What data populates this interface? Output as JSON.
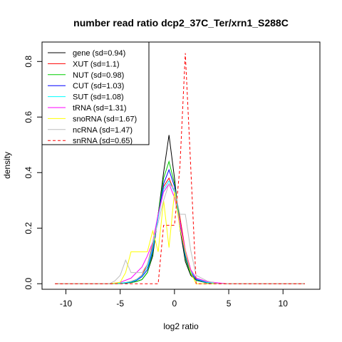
{
  "chart_data": {
    "type": "line",
    "title": "number read ratio dcp2_37C_Ter/xrn1_S288C",
    "xlabel": "log2 ratio",
    "ylabel": "density",
    "xlim": [
      -12.2,
      13.4
    ],
    "ylim": [
      -0.02,
      0.87
    ],
    "x_ticks": [
      -10,
      -5,
      0,
      5,
      10
    ],
    "x_tick_labels": [
      "-10",
      "-5",
      "0",
      "5",
      "10"
    ],
    "y_ticks": [
      0.0,
      0.2,
      0.4,
      0.6,
      0.8
    ],
    "y_tick_labels": [
      "0.0",
      "0.2",
      "0.4",
      "0.6",
      "0.8"
    ],
    "legend_position": "top-left",
    "series": [
      {
        "name": "gene (sd=0.94)",
        "color": "#000000",
        "dash": "solid",
        "x": [
          -11,
          -6,
          -5,
          -4.5,
          -4,
          -3.5,
          -3,
          -2.5,
          -2,
          -1.5,
          -1,
          -0.5,
          0,
          0.5,
          1,
          1.5,
          2,
          3,
          4,
          5,
          6,
          12
        ],
        "y": [
          0,
          0,
          0.001,
          0.002,
          0.004,
          0.008,
          0.015,
          0.04,
          0.1,
          0.25,
          0.4,
          0.535,
          0.38,
          0.2,
          0.08,
          0.03,
          0.012,
          0.003,
          0.001,
          0,
          0,
          0
        ]
      },
      {
        "name": "XUT (sd=1.1)",
        "color": "#ff0000",
        "dash": "solid",
        "x": [
          -11,
          -6,
          -5,
          -4.5,
          -4,
          -3.5,
          -3,
          -2.5,
          -2,
          -1.5,
          -1,
          -0.5,
          0,
          0.5,
          1,
          1.5,
          2,
          3,
          4,
          5,
          6,
          12
        ],
        "y": [
          0,
          0,
          0.002,
          0.004,
          0.008,
          0.015,
          0.03,
          0.07,
          0.14,
          0.25,
          0.35,
          0.38,
          0.33,
          0.24,
          0.12,
          0.05,
          0.02,
          0.005,
          0.002,
          0,
          0,
          0
        ]
      },
      {
        "name": "NUT (sd=0.98)",
        "color": "#00cd00",
        "dash": "solid",
        "x": [
          -11,
          -6,
          -5,
          -4.5,
          -4,
          -3.5,
          -3,
          -2.5,
          -2,
          -1.5,
          -1,
          -0.5,
          0,
          0.5,
          1,
          1.5,
          2,
          3,
          4,
          5,
          6,
          12
        ],
        "y": [
          0,
          0,
          0.001,
          0.002,
          0.004,
          0.008,
          0.015,
          0.04,
          0.11,
          0.25,
          0.38,
          0.44,
          0.36,
          0.22,
          0.09,
          0.035,
          0.012,
          0.003,
          0.001,
          0,
          0,
          0
        ]
      },
      {
        "name": "CUT (sd=1.03)",
        "color": "#0000ff",
        "dash": "solid",
        "x": [
          -11,
          -6,
          -5,
          -4.5,
          -4,
          -3.5,
          -3,
          -2.5,
          -2,
          -1.5,
          -1,
          -0.5,
          0,
          0.5,
          1,
          1.5,
          2,
          3,
          4,
          5,
          6,
          12
        ],
        "y": [
          0,
          0,
          0.002,
          0.003,
          0.006,
          0.012,
          0.025,
          0.05,
          0.12,
          0.24,
          0.36,
          0.41,
          0.35,
          0.21,
          0.1,
          0.04,
          0.015,
          0.004,
          0.001,
          0,
          0,
          0
        ]
      },
      {
        "name": "SUT (sd=1.08)",
        "color": "#00ffff",
        "dash": "solid",
        "x": [
          -11,
          -6,
          -5,
          -4.5,
          -4,
          -3.5,
          -3,
          -2.5,
          -2,
          -1.5,
          -1,
          -0.5,
          0,
          0.5,
          1,
          1.5,
          2,
          3,
          4,
          5,
          6,
          12
        ],
        "y": [
          0,
          0,
          0.002,
          0.004,
          0.007,
          0.014,
          0.028,
          0.06,
          0.13,
          0.24,
          0.34,
          0.37,
          0.33,
          0.22,
          0.11,
          0.045,
          0.018,
          0.005,
          0.001,
          0,
          0,
          0
        ]
      },
      {
        "name": "tRNA (sd=1.31)",
        "color": "#ff00ff",
        "dash": "solid",
        "x": [
          -11,
          -6,
          -5,
          -4,
          -3.5,
          -3,
          -2.5,
          -2,
          -1.5,
          -1,
          -0.5,
          0,
          0.5,
          1,
          1.5,
          2,
          3,
          4,
          5,
          6,
          12
        ],
        "y": [
          0,
          0,
          0.005,
          0.02,
          0.04,
          0.06,
          0.1,
          0.15,
          0.25,
          0.33,
          0.36,
          0.31,
          0.22,
          0.12,
          0.05,
          0.02,
          0.008,
          0.003,
          0,
          0,
          0
        ]
      },
      {
        "name": "snoRNA (sd=1.67)",
        "color": "#ffff00",
        "dash": "solid",
        "x": [
          -11,
          -6,
          -5,
          -4.5,
          -4,
          -3.5,
          -3,
          -2.5,
          -2,
          -1.5,
          -1,
          -0.5,
          0,
          0.5,
          1,
          1.5,
          2,
          3,
          4,
          12
        ],
        "y": [
          0,
          0,
          0.005,
          0.04,
          0.115,
          0.115,
          0.115,
          0.115,
          0.19,
          0.115,
          0.3,
          0.13,
          0.33,
          0.2,
          0.115,
          0.04,
          0,
          0,
          0,
          0
        ]
      },
      {
        "name": "ncRNA (sd=1.47)",
        "color": "#bebebe",
        "dash": "solid",
        "x": [
          -11,
          -6,
          -5.5,
          -5,
          -4.5,
          -4,
          -3.5,
          -3,
          -2.5,
          -2,
          -1.5,
          -1,
          -0.5,
          0,
          0.5,
          1,
          1.5,
          2,
          3,
          4,
          12
        ],
        "y": [
          0,
          0,
          0.01,
          0.03,
          0.085,
          0.04,
          0.04,
          0.04,
          0.07,
          0.15,
          0.22,
          0.3,
          0.36,
          0.34,
          0.25,
          0.25,
          0.12,
          0.03,
          0.01,
          0,
          0
        ]
      },
      {
        "name": "snRNA (sd=0.65)",
        "color": "#ff0000",
        "dash": "dashed",
        "x": [
          -11,
          -2,
          -1.5,
          -1,
          -0.5,
          0,
          0.5,
          1,
          1.5,
          2,
          12
        ],
        "y": [
          0,
          0,
          0,
          0.21,
          0.21,
          0.21,
          0.42,
          0.83,
          0.42,
          0,
          0
        ]
      }
    ]
  }
}
